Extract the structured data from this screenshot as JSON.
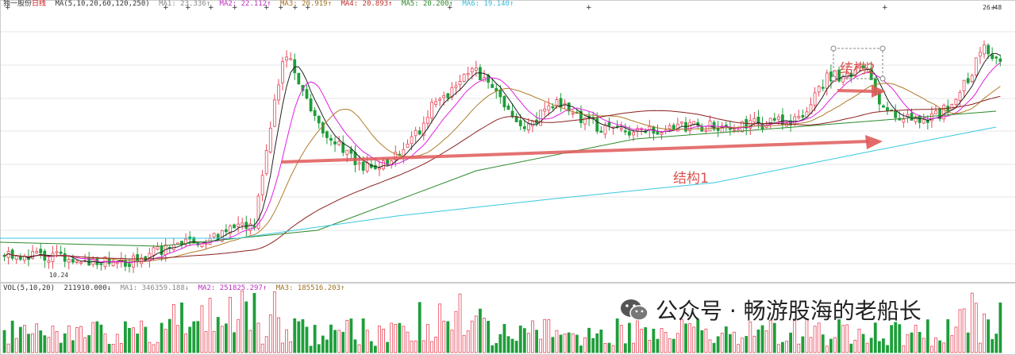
{
  "price_legend": {
    "name": "独一股份",
    "period": "日线",
    "ma_params": "MA(5,10,20,60,120,250)",
    "ma1": "MA1: 23.336↑",
    "ma2": "MA2: 22.112↑",
    "ma3": "MA3: 20.919↑",
    "ma4": "MA4: 20.893↑",
    "ma5": "MA5: 20.200↑",
    "ma6": "MA6: 19.140↑"
  },
  "vol_legend": {
    "params": "VOL(5,10,20)",
    "vol": "211910.000↓",
    "ma1": "MA1: 346359.188↓",
    "ma2": "MA2: 251825.297↑",
    "ma3": "MA3: 185516.203↑"
  },
  "price_labels": {
    "high": "26.48",
    "low": "10.24"
  },
  "annotations": {
    "structure1": "结构1",
    "structure2": "结构2"
  },
  "watermark": {
    "text": "公众号 · 畅游股海的老船长",
    "icon": "wechat-icon"
  },
  "colors": {
    "up": "#e8485a",
    "down": "#1e9e3a",
    "ma1": "#222222",
    "ma2": "#e020e0",
    "ma3": "#b07c2a",
    "ma4": "#2b8a2b",
    "ma5": "#8a2020",
    "ma6": "#38c8e0",
    "arrow": "#e05a5a"
  }
}
